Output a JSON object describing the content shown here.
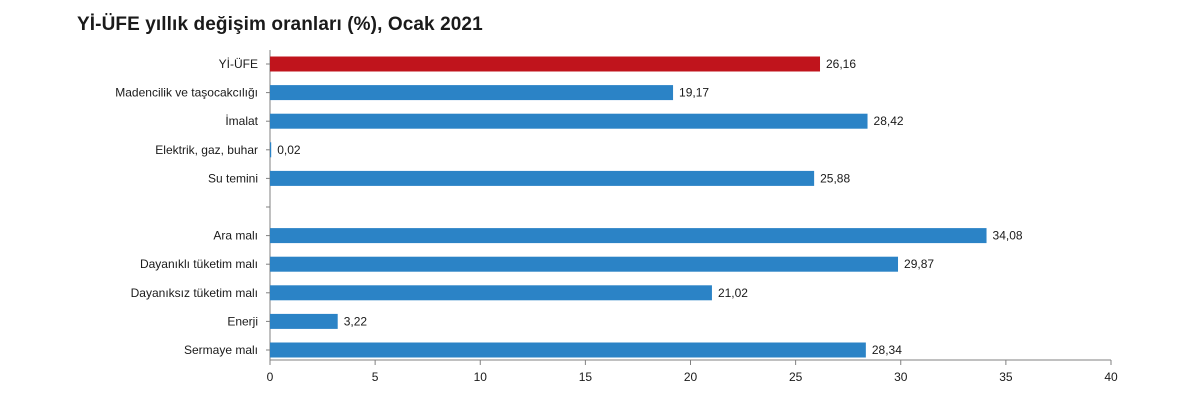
{
  "chart_data": {
    "type": "bar",
    "orientation": "horizontal",
    "title": "Yİ-ÜFE yıllık değişim oranları (%), Ocak 2021",
    "xlabel": "",
    "ylabel": "",
    "categories": [
      "Yİ-ÜFE",
      "Madencilik ve taşocakcılığı",
      "İmalat",
      "Elektrik, gaz, buhar",
      "Su temini",
      "",
      "Ara malı",
      "Dayanıklı tüketim malı",
      "Dayanıksız tüketim malı",
      "Enerji",
      "Sermaye malı"
    ],
    "values": [
      26.16,
      19.17,
      28.42,
      0.02,
      25.88,
      null,
      34.08,
      29.87,
      21.02,
      3.22,
      28.34
    ],
    "value_labels": [
      "26,16",
      "19,17",
      "28,42",
      "0,02",
      "25,88",
      "",
      "34,08",
      "29,87",
      "21,02",
      "3,22",
      "28,34"
    ],
    "highlight_index": 0,
    "colors": {
      "highlight": "#c0141c",
      "bar": "#2b83c6",
      "axis": "#808080"
    },
    "xlim": [
      0,
      40
    ],
    "xticks": [
      0,
      5,
      10,
      15,
      20,
      25,
      30,
      35,
      40
    ],
    "grid": false,
    "legend": "none"
  }
}
